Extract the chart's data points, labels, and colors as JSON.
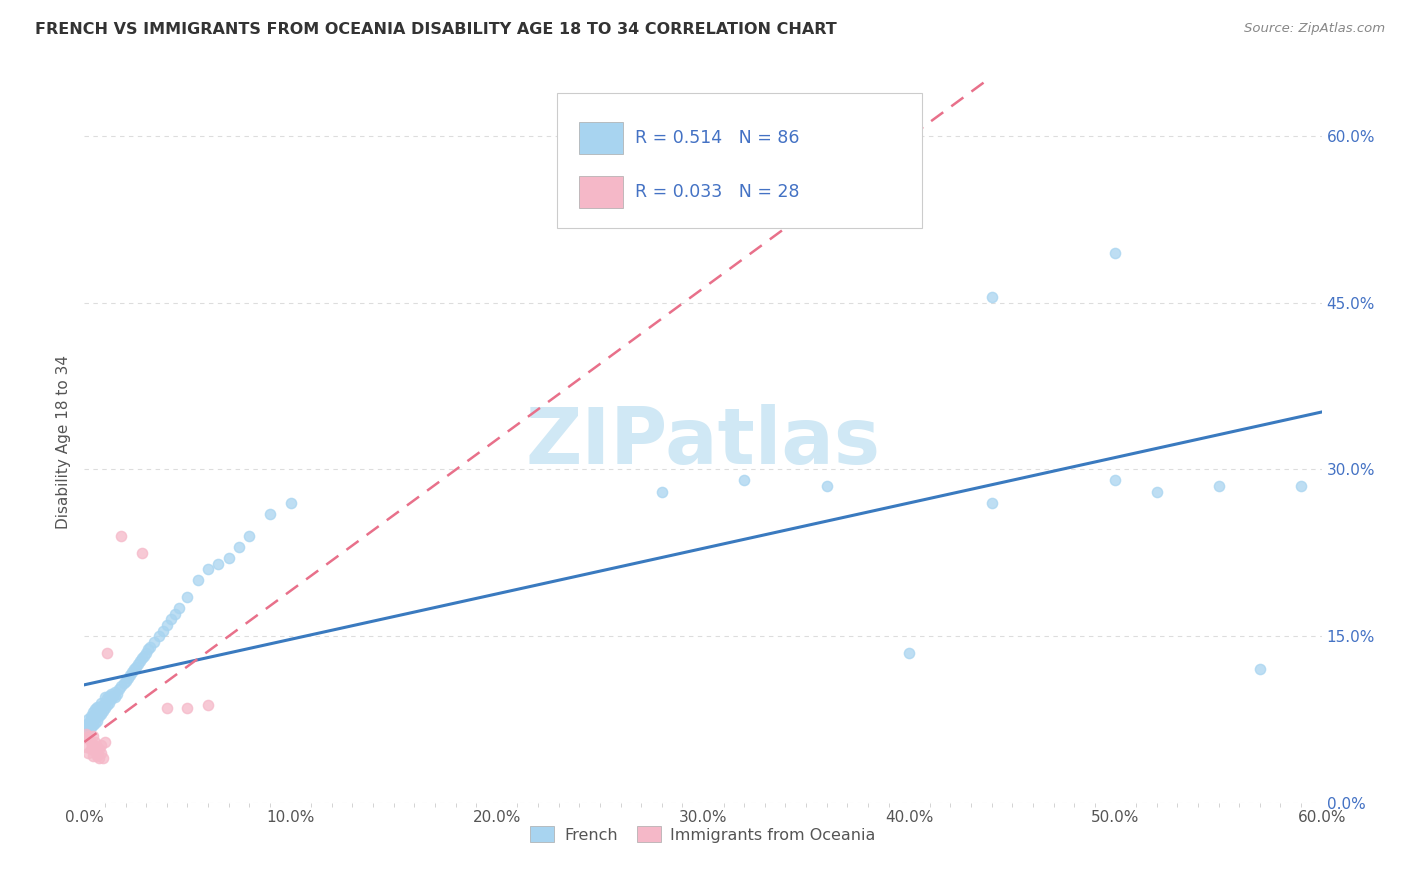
{
  "title": "FRENCH VS IMMIGRANTS FROM OCEANIA DISABILITY AGE 18 TO 34 CORRELATION CHART",
  "source": "Source: ZipAtlas.com",
  "ylabel": "Disability Age 18 to 34",
  "xlim": [
    0.0,
    0.6
  ],
  "ylim": [
    0.0,
    0.65
  ],
  "xtick_labels": [
    "0.0%",
    "",
    "",
    "",
    "",
    "",
    "",
    "",
    "",
    "",
    "10.0%",
    "",
    "",
    "",
    "",
    "",
    "",
    "",
    "",
    "",
    "20.0%",
    "",
    "",
    "",
    "",
    "",
    "",
    "",
    "",
    "",
    "30.0%",
    "",
    "",
    "",
    "",
    "",
    "",
    "",
    "",
    "",
    "40.0%",
    "",
    "",
    "",
    "",
    "",
    "",
    "",
    "",
    "",
    "50.0%",
    "",
    "",
    "",
    "",
    "",
    "",
    "",
    "",
    "",
    "60.0%"
  ],
  "xtick_vals": [
    0.0,
    0.01,
    0.02,
    0.03,
    0.04,
    0.05,
    0.06,
    0.07,
    0.08,
    0.09,
    0.1,
    0.11,
    0.12,
    0.13,
    0.14,
    0.15,
    0.16,
    0.17,
    0.18,
    0.19,
    0.2,
    0.21,
    0.22,
    0.23,
    0.24,
    0.25,
    0.26,
    0.27,
    0.28,
    0.29,
    0.3,
    0.31,
    0.32,
    0.33,
    0.34,
    0.35,
    0.36,
    0.37,
    0.38,
    0.39,
    0.4,
    0.41,
    0.42,
    0.43,
    0.44,
    0.45,
    0.46,
    0.47,
    0.48,
    0.49,
    0.5,
    0.51,
    0.52,
    0.53,
    0.54,
    0.55,
    0.56,
    0.57,
    0.58,
    0.59,
    0.6
  ],
  "ytick_labels_right": [
    "0.0%",
    "15.0%",
    "30.0%",
    "45.0%",
    "60.0%"
  ],
  "ytick_vals": [
    0.0,
    0.15,
    0.3,
    0.45,
    0.6
  ],
  "grid_color": "#dddddd",
  "background_color": "#ffffff",
  "watermark": "ZIPatlas",
  "watermark_color": "#d0e8f5",
  "french_color": "#a8d4f0",
  "oceania_color": "#f5b8c8",
  "french_line_color": "#3a7abf",
  "oceania_line_color": "#e8708a",
  "R_french": 0.514,
  "N_french": 86,
  "R_oceania": 0.033,
  "N_oceania": 28,
  "legend_label1": "French",
  "legend_label2": "Immigrants from Oceania",
  "french_x": [
    0.001,
    0.001,
    0.002,
    0.002,
    0.002,
    0.003,
    0.003,
    0.003,
    0.003,
    0.004,
    0.004,
    0.004,
    0.004,
    0.005,
    0.005,
    0.005,
    0.005,
    0.006,
    0.006,
    0.006,
    0.006,
    0.007,
    0.007,
    0.007,
    0.008,
    0.008,
    0.008,
    0.009,
    0.009,
    0.01,
    0.01,
    0.01,
    0.011,
    0.011,
    0.012,
    0.012,
    0.013,
    0.013,
    0.014,
    0.015,
    0.015,
    0.016,
    0.017,
    0.018,
    0.019,
    0.02,
    0.021,
    0.022,
    0.023,
    0.024,
    0.025,
    0.026,
    0.027,
    0.028,
    0.029,
    0.03,
    0.031,
    0.032,
    0.034,
    0.036,
    0.038,
    0.04,
    0.042,
    0.044,
    0.046,
    0.05,
    0.055,
    0.06,
    0.065,
    0.07,
    0.075,
    0.08,
    0.09,
    0.1,
    0.28,
    0.32,
    0.36,
    0.4,
    0.44,
    0.5,
    0.52,
    0.55,
    0.57,
    0.59,
    0.44,
    0.5
  ],
  "french_y": [
    0.065,
    0.07,
    0.068,
    0.072,
    0.075,
    0.068,
    0.072,
    0.075,
    0.078,
    0.07,
    0.075,
    0.078,
    0.082,
    0.072,
    0.076,
    0.08,
    0.084,
    0.074,
    0.078,
    0.082,
    0.086,
    0.078,
    0.082,
    0.086,
    0.08,
    0.085,
    0.09,
    0.083,
    0.088,
    0.085,
    0.09,
    0.095,
    0.088,
    0.094,
    0.09,
    0.096,
    0.093,
    0.098,
    0.096,
    0.095,
    0.1,
    0.098,
    0.102,
    0.105,
    0.108,
    0.11,
    0.112,
    0.115,
    0.118,
    0.12,
    0.122,
    0.125,
    0.128,
    0.13,
    0.132,
    0.135,
    0.138,
    0.14,
    0.145,
    0.15,
    0.155,
    0.16,
    0.165,
    0.17,
    0.175,
    0.185,
    0.2,
    0.21,
    0.215,
    0.22,
    0.23,
    0.24,
    0.26,
    0.27,
    0.28,
    0.29,
    0.285,
    0.135,
    0.27,
    0.29,
    0.28,
    0.285,
    0.12,
    0.285,
    0.455,
    0.495
  ],
  "oceania_x": [
    0.001,
    0.001,
    0.002,
    0.002,
    0.002,
    0.003,
    0.003,
    0.004,
    0.004,
    0.004,
    0.005,
    0.005,
    0.005,
    0.006,
    0.006,
    0.006,
    0.007,
    0.007,
    0.008,
    0.008,
    0.009,
    0.01,
    0.011,
    0.018,
    0.028,
    0.04,
    0.05,
    0.06
  ],
  "oceania_y": [
    0.062,
    0.05,
    0.058,
    0.06,
    0.045,
    0.055,
    0.048,
    0.052,
    0.06,
    0.042,
    0.05,
    0.055,
    0.048,
    0.05,
    0.042,
    0.045,
    0.048,
    0.04,
    0.052,
    0.045,
    0.04,
    0.055,
    0.135,
    0.24,
    0.225,
    0.085,
    0.085,
    0.088
  ]
}
